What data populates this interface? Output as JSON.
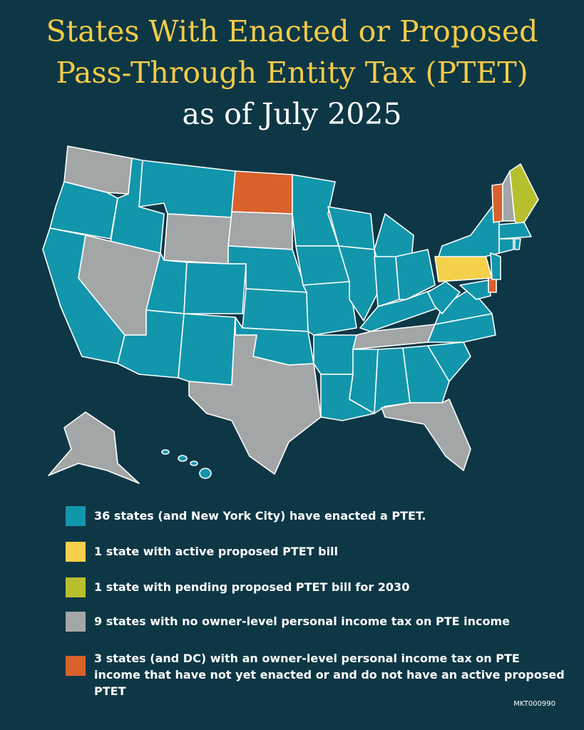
{
  "header": {
    "title_lines": [
      "States With Enacted or Proposed",
      "Pass-Through Entity Tax (PTET)"
    ],
    "subtitle": "as of July 2025"
  },
  "legend": [
    {
      "color": "#1296ac",
      "text": "36 states (and New York City) have enacted a PTET."
    },
    {
      "color": "#f5d04a",
      "text": "1 state with active proposed PTET bill"
    },
    {
      "color": "#b6c02c",
      "text": "1 state with pending proposed PTET bill for 2030"
    },
    {
      "color": "#a3a6a7",
      "text": "9 states with no owner-level personal income tax on PTE income"
    },
    {
      "color": "#d9612b",
      "text": "3 states (and DC) with an owner-level personal income tax on PTE income that have not yet enacted or and do not have an active proposed PTET"
    }
  ],
  "footer": {
    "code": "MKT000990"
  }
}
